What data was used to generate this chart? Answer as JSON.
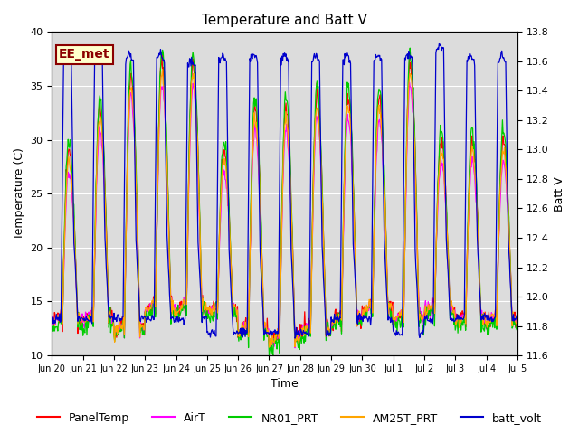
{
  "title": "Temperature and Batt V",
  "xlabel": "Time",
  "ylabel_left": "Temperature (C)",
  "ylabel_right": "Batt V",
  "annotation": "EE_met",
  "annotation_color": "#8B0000",
  "annotation_bg": "#ffffcc",
  "background_color": "#dcdcdc",
  "ylim_left": [
    10,
    40
  ],
  "ylim_right": [
    11.6,
    13.8
  ],
  "series": [
    {
      "label": "PanelTemp",
      "color": "#ff0000"
    },
    {
      "label": "AirT",
      "color": "#ff00ff"
    },
    {
      "label": "NR01_PRT",
      "color": "#00cc00"
    },
    {
      "label": "AM25T_PRT",
      "color": "#ffa500"
    },
    {
      "label": "batt_volt",
      "color": "#0000cc"
    }
  ],
  "xtick_labels": [
    "Jun 20",
    "Jun 21",
    "Jun 22",
    "Jun 23",
    "Jun 24",
    "Jun 25",
    "Jun 26",
    "Jun 27",
    "Jun 28",
    "Jun 29",
    "Jun 30",
    "Jul 1",
    "Jul 2",
    "Jul 3",
    "Jul 4",
    "Jul 5"
  ],
  "yticks_left": [
    10,
    15,
    20,
    25,
    30,
    35,
    40
  ],
  "yticks_right": [
    11.6,
    11.8,
    12.0,
    12.2,
    12.4,
    12.6,
    12.8,
    13.0,
    13.2,
    13.4,
    13.6,
    13.8
  ],
  "title_fontsize": 11,
  "label_fontsize": 9,
  "tick_fontsize": 8,
  "legend_fontsize": 9,
  "linewidth": 0.9
}
